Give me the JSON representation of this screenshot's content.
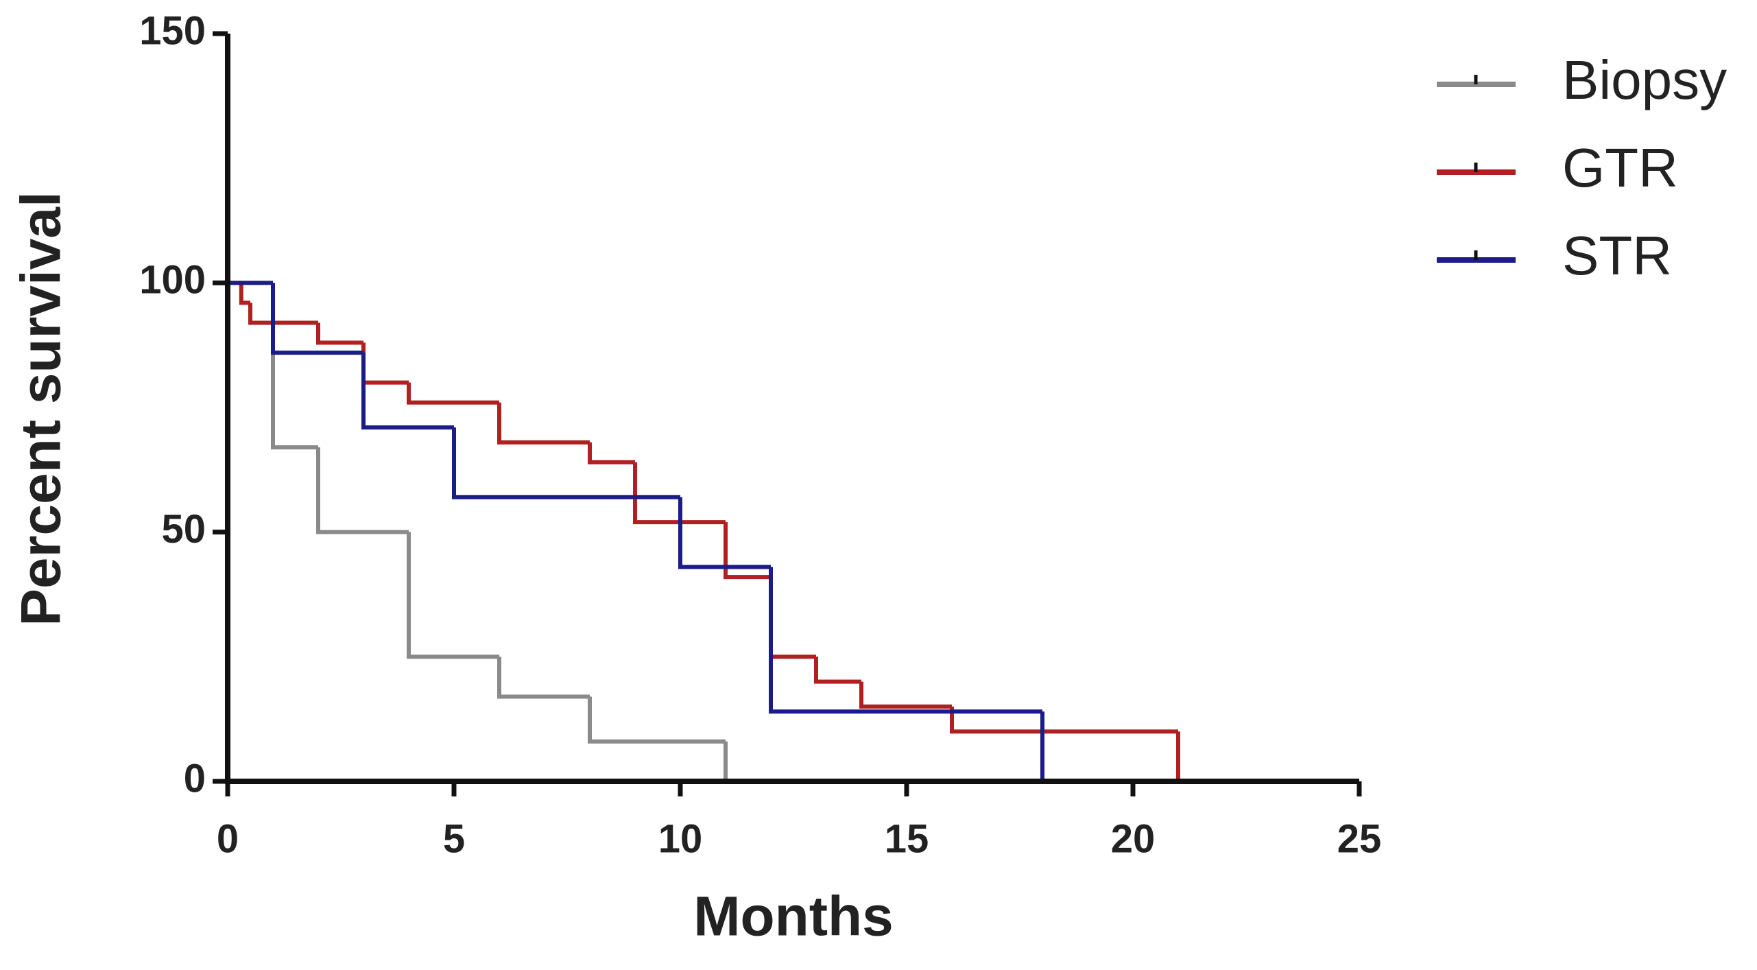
{
  "chart_data": {
    "type": "step",
    "x_label": "Months",
    "y_label": "Percent survival",
    "xlim": [
      0,
      25
    ],
    "xticks": [
      0,
      5,
      10,
      15,
      20,
      25
    ],
    "ylim": [
      0,
      150
    ],
    "yticks": [
      0,
      50,
      100,
      150
    ],
    "legend": "top-right",
    "series": [
      {
        "name": "Biopsy",
        "color": "#8a8a8a",
        "x": [
          0,
          1,
          2,
          4,
          6,
          8,
          11
        ],
        "values": [
          100,
          67,
          50,
          25,
          17,
          8,
          0
        ]
      },
      {
        "name": "GTR",
        "color": "#b02020",
        "x": [
          0,
          0.3,
          0.5,
          2,
          3,
          4,
          6,
          8,
          9,
          11,
          12,
          13,
          14,
          16,
          21
        ],
        "values": [
          100,
          96,
          92,
          88,
          80,
          76,
          68,
          64,
          52,
          41,
          25,
          20,
          15,
          10,
          0
        ]
      },
      {
        "name": "STR",
        "color": "#1c1c88",
        "x": [
          0,
          1,
          3,
          5,
          10,
          12,
          18
        ],
        "values": [
          100,
          86,
          71,
          57,
          43,
          14,
          0
        ]
      }
    ]
  }
}
